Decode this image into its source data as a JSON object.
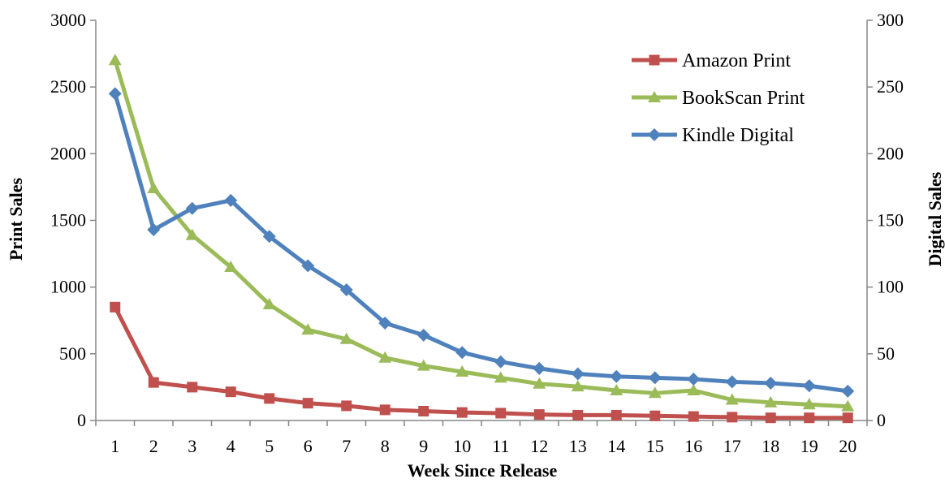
{
  "chart_data": {
    "type": "line",
    "title": "",
    "xlabel": "Week Since Release",
    "ylabel": "Print Sales",
    "y2label": "Digital Sales",
    "categories": [
      "1",
      "2",
      "3",
      "4",
      "5",
      "6",
      "7",
      "8",
      "9",
      "10",
      "11",
      "12",
      "13",
      "14",
      "15",
      "16",
      "17",
      "18",
      "19",
      "20"
    ],
    "ylim": [
      0,
      3000
    ],
    "yticks": [
      "0",
      "500",
      "1000",
      "1500",
      "2000",
      "2500",
      "3000"
    ],
    "y2lim": [
      0,
      300
    ],
    "y2ticks": [
      "0",
      "50",
      "100",
      "150",
      "200",
      "250",
      "300"
    ],
    "grid": false,
    "legend_position": "top-right",
    "series": [
      {
        "name": "Amazon Print",
        "axis": "left",
        "marker": "square",
        "color": "#C0504D",
        "values": [
          850,
          285,
          250,
          215,
          165,
          130,
          110,
          80,
          70,
          60,
          55,
          45,
          40,
          40,
          35,
          30,
          25,
          20,
          20,
          20
        ]
      },
      {
        "name": "BookScan Print",
        "axis": "left",
        "marker": "triangle",
        "color": "#9BBB59",
        "values": [
          2700,
          1740,
          1390,
          1150,
          870,
          680,
          610,
          470,
          410,
          365,
          320,
          275,
          255,
          225,
          205,
          225,
          155,
          135,
          120,
          105
        ]
      },
      {
        "name": "Kindle Digital",
        "axis": "right",
        "marker": "diamond",
        "color": "#4F81BD",
        "values": [
          245,
          143,
          159,
          165,
          138,
          116,
          98,
          73,
          64,
          51,
          44,
          39,
          35,
          33,
          32,
          31,
          29,
          28,
          26,
          22
        ]
      }
    ]
  }
}
